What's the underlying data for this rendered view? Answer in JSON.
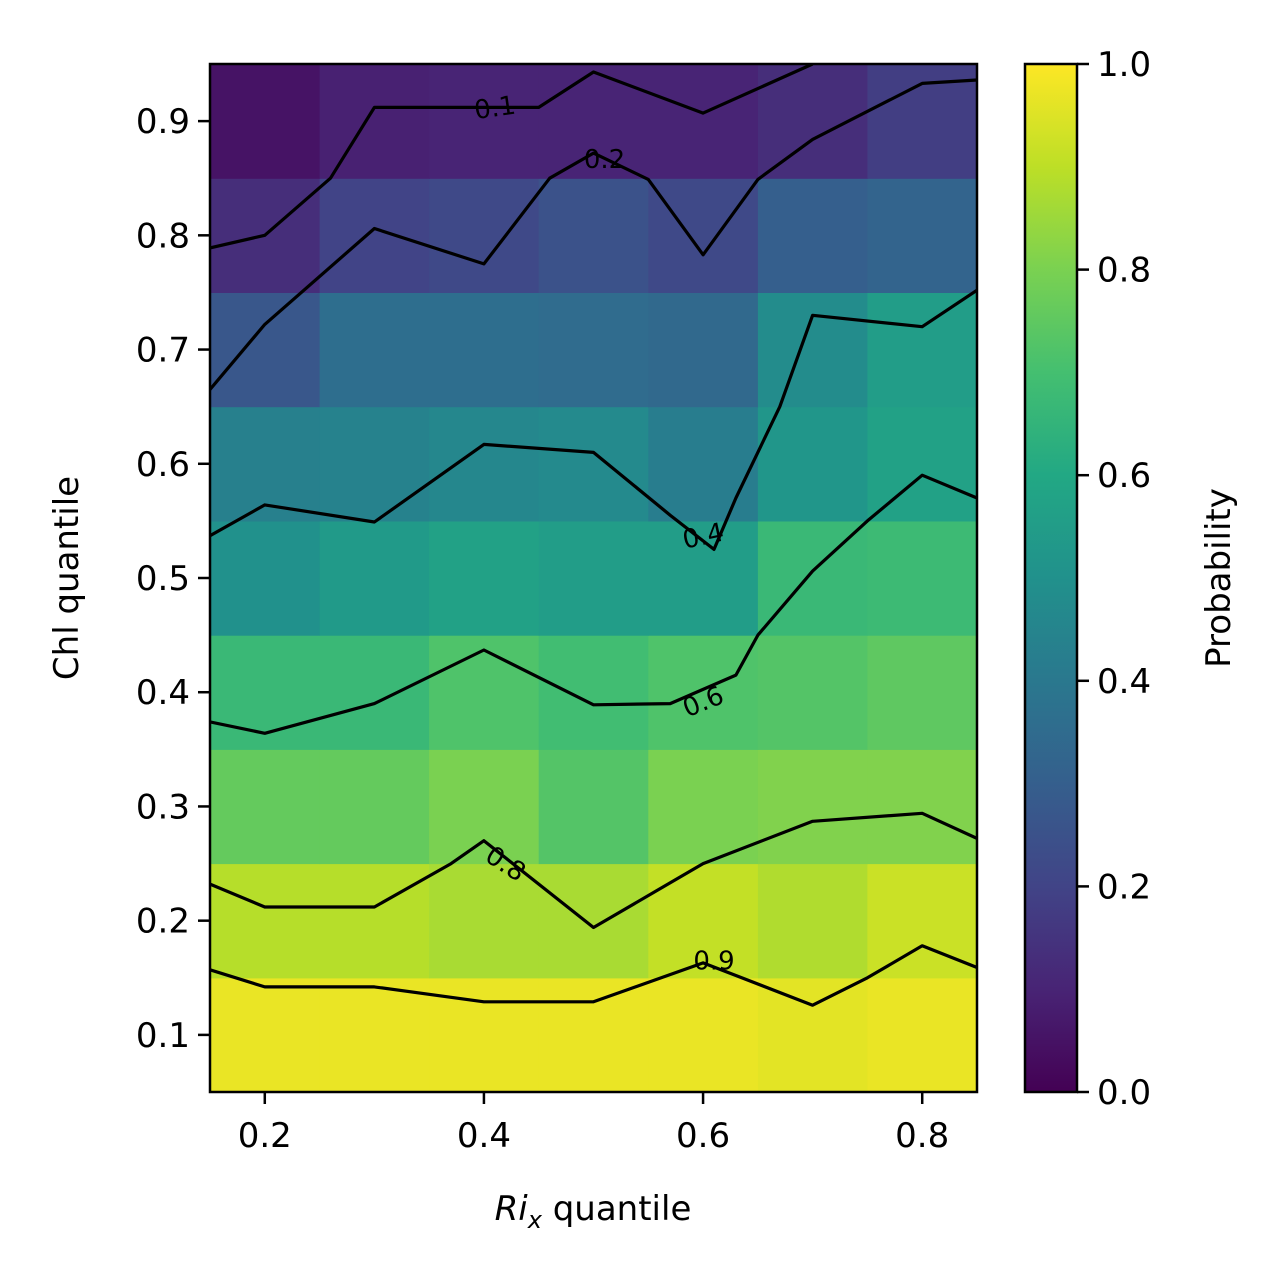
{
  "chart_data": {
    "type": "heatmap",
    "xlabel_italic": "Ri",
    "xlabel_sub": "x",
    "xlabel_rest": " quantile",
    "ylabel": "Chl quantile",
    "colorbar_label": "Probability",
    "colormap": "viridis",
    "xlim": [
      0.15,
      0.85
    ],
    "ylim": [
      0.05,
      0.95
    ],
    "clim": [
      0.0,
      1.0
    ],
    "x_ticks": [
      "0.2",
      "0.4",
      "0.6",
      "0.8"
    ],
    "y_ticks": [
      "0.1",
      "0.2",
      "0.3",
      "0.4",
      "0.5",
      "0.6",
      "0.7",
      "0.8",
      "0.9"
    ],
    "colorbar_ticks": [
      "0.0",
      "0.2",
      "0.4",
      "0.6",
      "0.8",
      "1.0"
    ],
    "x_centers": [
      0.2,
      0.3,
      0.4,
      0.5,
      0.6,
      0.7,
      0.8
    ],
    "y_centers": [
      0.1,
      0.2,
      0.3,
      0.4,
      0.5,
      0.6,
      0.7,
      0.8,
      0.9
    ],
    "values": [
      [
        0.97,
        0.97,
        0.97,
        0.97,
        0.97,
        0.96,
        0.97
      ],
      [
        0.89,
        0.89,
        0.87,
        0.87,
        0.91,
        0.88,
        0.92
      ],
      [
        0.76,
        0.76,
        0.8,
        0.73,
        0.8,
        0.81,
        0.81
      ],
      [
        0.67,
        0.67,
        0.72,
        0.69,
        0.72,
        0.73,
        0.75
      ],
      [
        0.5,
        0.54,
        0.57,
        0.55,
        0.55,
        0.67,
        0.68
      ],
      [
        0.43,
        0.44,
        0.46,
        0.47,
        0.42,
        0.52,
        0.57
      ],
      [
        0.27,
        0.36,
        0.36,
        0.35,
        0.34,
        0.48,
        0.55
      ],
      [
        0.13,
        0.2,
        0.22,
        0.25,
        0.22,
        0.3,
        0.32
      ],
      [
        0.05,
        0.09,
        0.1,
        0.1,
        0.1,
        0.13,
        0.18
      ]
    ],
    "contours": [
      {
        "level": "0.1",
        "points": [
          [
            0.15,
            0.789
          ],
          [
            0.2,
            0.8
          ],
          [
            0.26,
            0.85
          ],
          [
            0.3,
            0.912
          ],
          [
            0.45,
            0.912
          ],
          [
            0.5,
            0.943
          ],
          [
            0.6,
            0.907
          ],
          [
            0.7,
            0.95
          ]
        ],
        "label_x": 0.41,
        "label_y": 0.912,
        "label_rot": -8
      },
      {
        "level": "0.2",
        "points": [
          [
            0.15,
            0.665
          ],
          [
            0.2,
            0.722
          ],
          [
            0.3,
            0.806
          ],
          [
            0.4,
            0.775
          ],
          [
            0.46,
            0.85
          ],
          [
            0.5,
            0.872
          ],
          [
            0.55,
            0.849
          ],
          [
            0.6,
            0.783
          ],
          [
            0.65,
            0.849
          ],
          [
            0.7,
            0.884
          ],
          [
            0.8,
            0.933
          ],
          [
            0.85,
            0.936
          ]
        ],
        "label_x": 0.51,
        "label_y": 0.867,
        "label_rot": 0
      },
      {
        "level": "0.4",
        "points": [
          [
            0.15,
            0.537
          ],
          [
            0.2,
            0.564
          ],
          [
            0.3,
            0.549
          ],
          [
            0.4,
            0.617
          ],
          [
            0.5,
            0.61
          ],
          [
            0.57,
            0.555
          ],
          [
            0.61,
            0.525
          ],
          [
            0.63,
            0.57
          ],
          [
            0.67,
            0.65
          ],
          [
            0.7,
            0.73
          ],
          [
            0.8,
            0.72
          ],
          [
            0.85,
            0.752
          ]
        ],
        "label_x": 0.6,
        "label_y": 0.537,
        "label_rot": -12
      },
      {
        "level": "0.6",
        "points": [
          [
            0.15,
            0.374
          ],
          [
            0.2,
            0.364
          ],
          [
            0.3,
            0.39
          ],
          [
            0.4,
            0.437
          ],
          [
            0.5,
            0.389
          ],
          [
            0.57,
            0.39
          ],
          [
            0.63,
            0.415
          ],
          [
            0.65,
            0.45
          ],
          [
            0.7,
            0.506
          ],
          [
            0.75,
            0.55
          ],
          [
            0.8,
            0.59
          ],
          [
            0.85,
            0.57
          ]
        ],
        "label_x": 0.6,
        "label_y": 0.392,
        "label_rot": -22
      },
      {
        "level": "0.8",
        "points": [
          [
            0.15,
            0.232
          ],
          [
            0.2,
            0.212
          ],
          [
            0.3,
            0.212
          ],
          [
            0.37,
            0.25
          ],
          [
            0.4,
            0.27
          ],
          [
            0.5,
            0.194
          ],
          [
            0.6,
            0.25
          ],
          [
            0.7,
            0.287
          ],
          [
            0.8,
            0.294
          ],
          [
            0.85,
            0.272
          ]
        ],
        "label_x": 0.42,
        "label_y": 0.25,
        "label_rot": 33
      },
      {
        "level": "0.9",
        "points": [
          [
            0.15,
            0.157
          ],
          [
            0.2,
            0.142
          ],
          [
            0.3,
            0.142
          ],
          [
            0.4,
            0.129
          ],
          [
            0.5,
            0.129
          ],
          [
            0.6,
            0.163
          ],
          [
            0.63,
            0.152
          ],
          [
            0.7,
            0.126
          ],
          [
            0.75,
            0.15
          ],
          [
            0.8,
            0.178
          ],
          [
            0.85,
            0.159
          ]
        ],
        "label_x": 0.61,
        "label_y": 0.165,
        "label_rot": 0
      }
    ]
  }
}
